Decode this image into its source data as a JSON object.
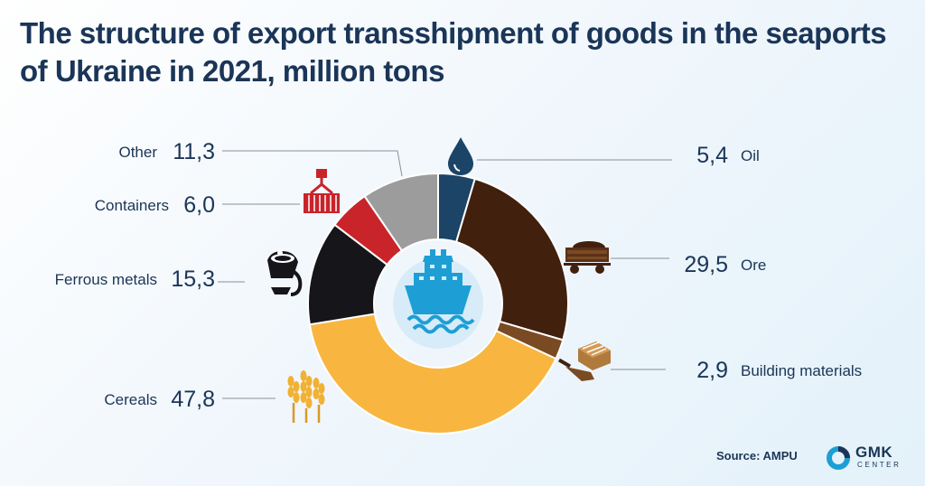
{
  "chart_data": {
    "type": "pie",
    "title": "The structure of export transshipment of goods in the seaports of Ukraine in 2021, million tons",
    "categories": [
      "Oil",
      "Ore",
      "Building materials",
      "Cereals",
      "Ferrous metals",
      "Containers",
      "Other"
    ],
    "values": [
      5.4,
      29.5,
      2.9,
      47.8,
      15.3,
      6.0,
      11.3
    ],
    "value_labels": [
      "5,4",
      "29,5",
      "2,9",
      "47,8",
      "15,3",
      "6,0",
      "11,3"
    ],
    "colors": [
      "#1b4466",
      "#41200e",
      "#7a4a22",
      "#f8b641",
      "#16161a",
      "#c8242a",
      "#9c9c9c"
    ],
    "icons": [
      "oil-drop-icon",
      "ore-wagon-icon",
      "building-bricks-icon",
      "wheat-icon",
      "metal-ladle-icon",
      "container-crane-icon",
      ""
    ],
    "center_icon": "ship-icon",
    "legend": "none"
  },
  "header": {
    "title_line1": "The structure of export transshipment of goods in the seaports",
    "title_line2": "of Ukraine in 2021, million tons"
  },
  "footer": {
    "source": "Source: AMPU",
    "logo_primary": "GMK",
    "logo_secondary": "CENTER"
  }
}
